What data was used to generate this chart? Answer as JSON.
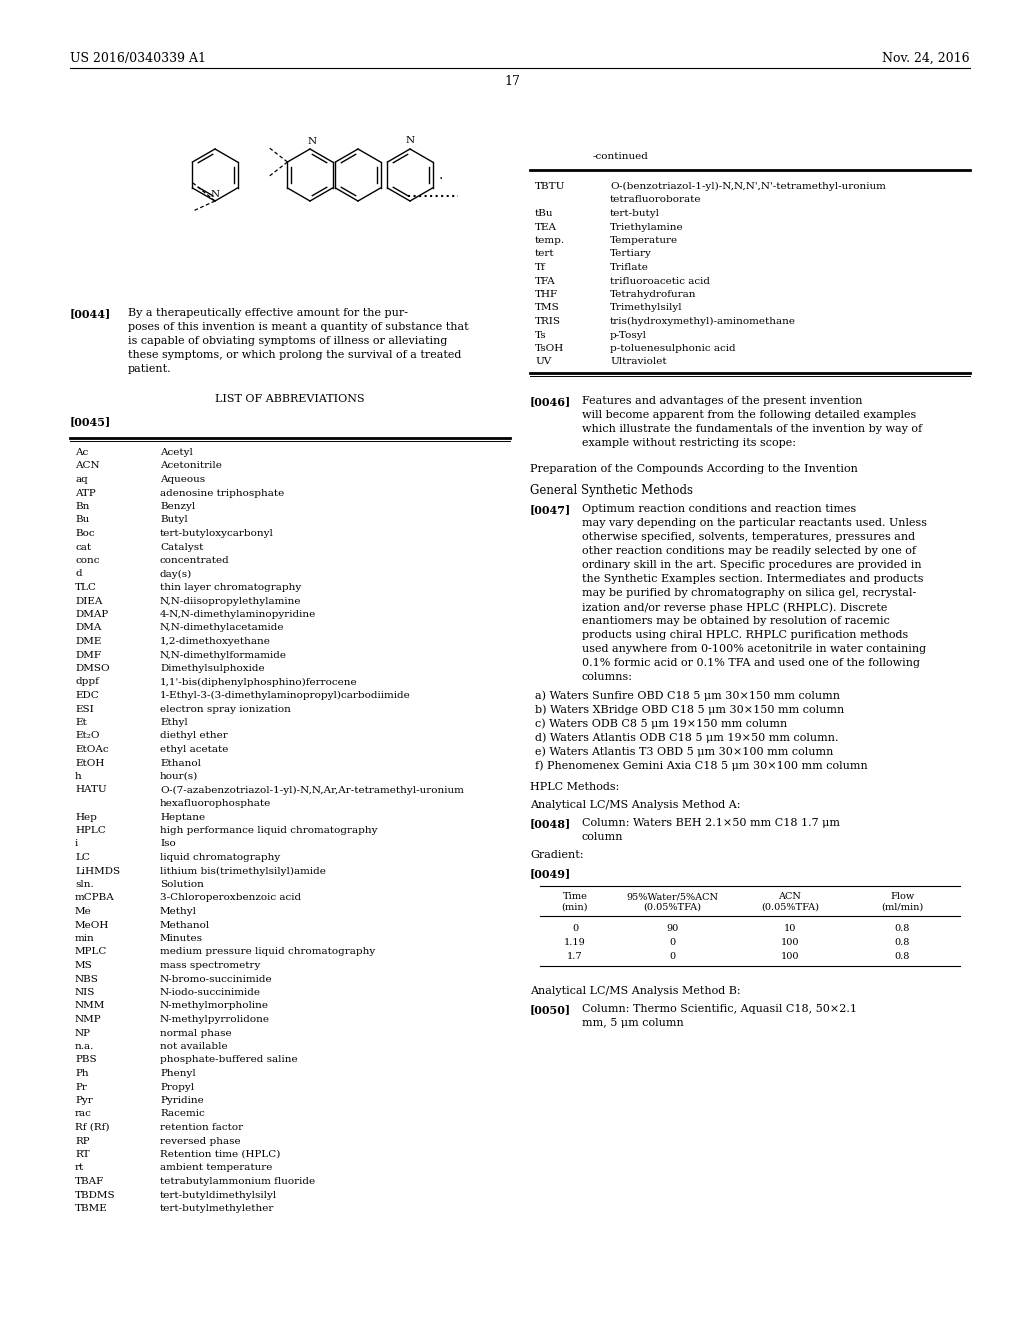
{
  "header_left": "US 2016/0340339 A1",
  "header_right": "Nov. 24, 2016",
  "page_number": "17",
  "continued_label": "-continued",
  "background_color": "#ffffff",
  "abbrev_table_right": [
    [
      "TBTU",
      "O-(benzotriazol-1-yl)-N,N,N',N'-tetramethyl-uronium",
      "tetrafluoroborate"
    ],
    [
      "tBu",
      "tert-butyl",
      ""
    ],
    [
      "TEA",
      "Triethylamine",
      ""
    ],
    [
      "temp.",
      "Temperature",
      ""
    ],
    [
      "tert",
      "Tertiary",
      ""
    ],
    [
      "Tf",
      "Triflate",
      ""
    ],
    [
      "TFA",
      "trifluoroacetic acid",
      ""
    ],
    [
      "THF",
      "Tetrahydrofuran",
      ""
    ],
    [
      "TMS",
      "Trimethylsilyl",
      ""
    ],
    [
      "TRIS",
      "tris(hydroxymethyl)-aminomethane",
      ""
    ],
    [
      "Ts",
      "p-Tosyl",
      ""
    ],
    [
      "TsOH",
      "p-toluenesulphonic acid",
      ""
    ],
    [
      "UV",
      "Ultraviolet",
      ""
    ]
  ],
  "abbrev_table_left": [
    [
      "Ac",
      "Acetyl"
    ],
    [
      "ACN",
      "Acetonitrile"
    ],
    [
      "aq",
      "Aqueous"
    ],
    [
      "ATP",
      "adenosine triphosphate"
    ],
    [
      "Bn",
      "Benzyl"
    ],
    [
      "Bu",
      "Butyl"
    ],
    [
      "Boc",
      "tert-butyloxycarbonyl"
    ],
    [
      "cat",
      "Catalyst"
    ],
    [
      "conc",
      "concentrated"
    ],
    [
      "d",
      "day(s)"
    ],
    [
      "TLC",
      "thin layer chromatography"
    ],
    [
      "DIEA",
      "N,N-diisopropylethylamine"
    ],
    [
      "DMAP",
      "4-N,N-dimethylaminopyridine"
    ],
    [
      "DMA",
      "N,N-dimethylacetamide"
    ],
    [
      "DME",
      "1,2-dimethoxyethane"
    ],
    [
      "DMF",
      "N,N-dimethylformamide"
    ],
    [
      "DMSO",
      "Dimethylsulphoxide"
    ],
    [
      "dppf",
      "1,1'-bis(diphenylphosphino)ferrocene"
    ],
    [
      "EDC",
      "1-Ethyl-3-(3-dimethylaminopropyl)carbodiimide"
    ],
    [
      "ESI",
      "electron spray ionization"
    ],
    [
      "Et",
      "Ethyl"
    ],
    [
      "Et₂O",
      "diethyl ether"
    ],
    [
      "EtOAc",
      "ethyl acetate"
    ],
    [
      "EtOH",
      "Ethanol"
    ],
    [
      "h",
      "hour(s)"
    ],
    [
      "HATU",
      "O-(7-azabenzotriazol-1-yl)-N,N,Ar,Ar-tetramethyl-uronium",
      "hexafluorophosphate"
    ],
    [
      "Hep",
      "Heptane"
    ],
    [
      "HPLC",
      "high performance liquid chromatography"
    ],
    [
      "i",
      "Iso"
    ],
    [
      "LC",
      "liquid chromatography"
    ],
    [
      "LiHMDS",
      "lithium bis(trimethylsilyl)amide"
    ],
    [
      "sln.",
      "Solution"
    ],
    [
      "mCPBA",
      "3-Chloroperoxbenzoic acid"
    ],
    [
      "Me",
      "Methyl"
    ],
    [
      "MeOH",
      "Methanol"
    ],
    [
      "min",
      "Minutes"
    ],
    [
      "MPLC",
      "medium pressure liquid chromatography"
    ],
    [
      "MS",
      "mass spectrometry"
    ],
    [
      "NBS",
      "N-bromo-succinimide"
    ],
    [
      "NIS",
      "N-iodo-succinimide"
    ],
    [
      "NMM",
      "N-methylmorpholine"
    ],
    [
      "NMP",
      "N-methylpyrrolidone"
    ],
    [
      "NP",
      "normal phase"
    ],
    [
      "n.a.",
      "not available"
    ],
    [
      "PBS",
      "phosphate-buffered saline"
    ],
    [
      "Ph",
      "Phenyl"
    ],
    [
      "Pr",
      "Propyl"
    ],
    [
      "Pyr",
      "Pyridine"
    ],
    [
      "rac",
      "Racemic"
    ],
    [
      "Rf (Rf)",
      "retention factor"
    ],
    [
      "RP",
      "reversed phase"
    ],
    [
      "RT",
      "Retention time (HPLC)"
    ],
    [
      "rt",
      "ambient temperature"
    ],
    [
      "TBAF",
      "tetrabutylammonium fluoride"
    ],
    [
      "TBDMS",
      "tert-butyldimethylsilyl"
    ],
    [
      "TBME",
      "tert-butylmethylether"
    ]
  ],
  "columns_list": [
    "a) Waters Sunfire OBD C18 5 μm 30×150 mm column",
    "b) Waters XBridge OBD C18 5 μm 30×150 mm column",
    "c) Waters ODB C8 5 μm 19×150 mm column",
    "d) Waters Atlantis ODB C18 5 μm 19×50 mm column.",
    "e) Waters Atlantis T3 OBD 5 μm 30×100 mm column",
    "f) Phenomenex Gemini Axia C18 5 μm 30×100 mm column"
  ],
  "gradient_table_headers": [
    "Time\n(min)",
    "95%Water/5%ACN\n(0.05%TFA)",
    "ACN\n(0.05%TFA)",
    "Flow\n(ml/min)"
  ],
  "gradient_table_data": [
    [
      "0",
      "90",
      "10",
      "0.8"
    ],
    [
      "1.19",
      "0",
      "100",
      "0.8"
    ],
    [
      "1.7",
      "0",
      "100",
      "0.8"
    ]
  ]
}
